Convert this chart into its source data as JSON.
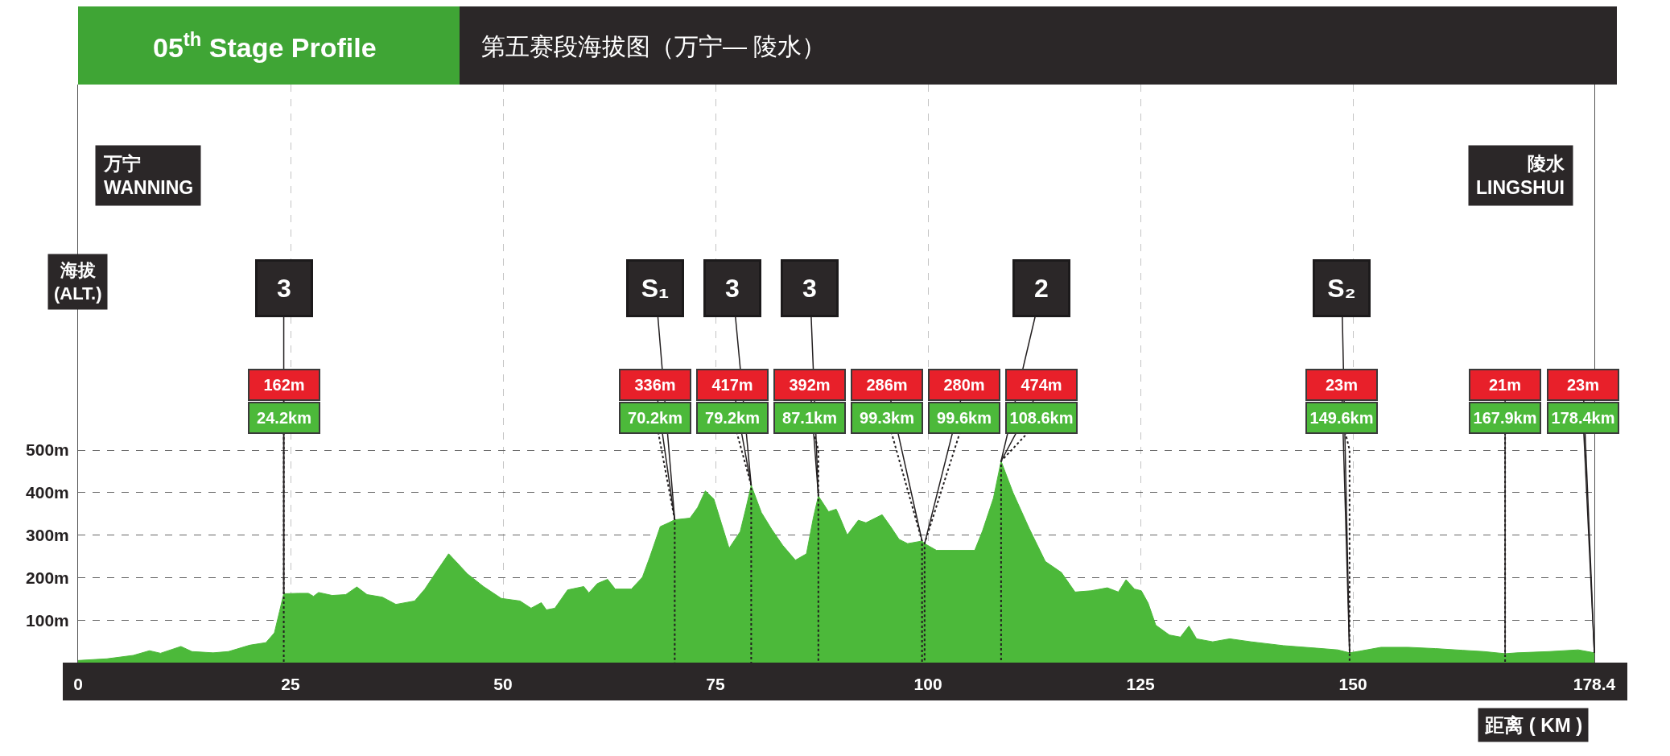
{
  "chart_data": {
    "type": "area",
    "title": "第五赛段海拔图（万宁— 陵水）",
    "subtitle": "05$^{th}$ Stage Profile",
    "xlabel": "距离 ( KM )",
    "ylabel": "海拔\n(ALT.)",
    "x": [
      0,
      3.4,
      6.5,
      8.4,
      9.7,
      12.1,
      13.4,
      15.9,
      17.7,
      18.7,
      20.2,
      22.1,
      23.1,
      23.7,
      24.2,
      25.9,
      27.1,
      27.7,
      28.3,
      29.9,
      31.5,
      32.8,
      34.0,
      35.8,
      37.4,
      39.6,
      40.8,
      42.1,
      43.6,
      44.5,
      45.8,
      47.7,
      49.8,
      52.0,
      53.3,
      54.5,
      55.1,
      56.1,
      57.6,
      59.5,
      60.1,
      61.1,
      62.3,
      63.2,
      65.1,
      66.4,
      67.3,
      68.5,
      69.5,
      70.2,
      72.0,
      72.9,
      73.8,
      74.8,
      75.7,
      76.6,
      77.9,
      78.6,
      79.2,
      80.4,
      81.6,
      82.9,
      84.4,
      85.7,
      86.5,
      87.1,
      88.3,
      89.2,
      89.5,
      90.5,
      91.8,
      92.7,
      94.6,
      95.6,
      96.6,
      97.6,
      99.3,
      99.6,
      101.0,
      103.6,
      105.5,
      106.4,
      107.7,
      108.6,
      110.0,
      111.9,
      113.8,
      115.7,
      117.3,
      119.2,
      121.1,
      122.4,
      123.3,
      124.3,
      125.1,
      125.9,
      126.8,
      128.4,
      129.7,
      130.7,
      131.6,
      133.5,
      135.5,
      138.0,
      141.8,
      145.7,
      148.2,
      149.6,
      150.8,
      153.3,
      156.5,
      159.7,
      162.9,
      165.4,
      167.9,
      169.3,
      173.1,
      176.5,
      178.4
    ],
    "series": [
      {
        "color": "#4cb93a",
        "values": [
          5,
          9,
          17,
          28,
          22,
          38,
          26,
          23,
          26,
          32,
          41,
          47,
          70,
          120,
          162,
          163,
          163,
          156,
          165,
          158,
          160,
          178,
          160,
          154,
          137,
          145,
          173,
          212,
          256,
          237,
          209,
          179,
          151,
          145,
          128,
          141,
          124,
          128,
          171,
          179,
          164,
          186,
          196,
          173,
          173,
          201,
          250,
          320,
          329,
          336,
          340,
          365,
          404,
          385,
          327,
          269,
          308,
          365,
          417,
          353,
          314,
          276,
          241,
          256,
          340,
          392,
          355,
          361,
          348,
          300,
          335,
          329,
          348,
          320,
          290,
          280,
          286,
          280,
          264,
          264,
          264,
          309,
          387,
          474,
          400,
          316,
          238,
          212,
          166,
          169,
          176,
          166,
          195,
          173,
          169,
          140,
          88,
          65,
          60,
          86,
          56,
          49,
          56,
          49,
          40,
          34,
          30,
          23,
          27,
          36,
          36,
          33,
          29,
          26,
          21,
          23,
          26,
          30,
          23
        ]
      }
    ],
    "xlim": [
      0,
      178.4
    ],
    "xticks": [
      0,
      25,
      50,
      75,
      100,
      125,
      150,
      178.4
    ],
    "ylim": [
      0,
      1360
    ],
    "yticks": [
      {
        "value": 100,
        "label": "100m"
      },
      {
        "value": 200,
        "label": "200m"
      },
      {
        "value": 300,
        "label": "300m"
      },
      {
        "value": 400,
        "label": "400m"
      },
      {
        "value": 500,
        "label": "500m"
      }
    ],
    "grid": true,
    "ref_lines": [
      {
        "axis": "x",
        "value": 24.2,
        "label": "24.2km",
        "line_style": "dotted"
      },
      {
        "axis": "x",
        "value": 70.2,
        "label": "70.2km",
        "line_style": "dotted"
      },
      {
        "axis": "x",
        "value": 79.2,
        "label": "79.2km",
        "line_style": "dotted"
      },
      {
        "axis": "x",
        "value": 87.1,
        "label": "87.1km",
        "line_style": "dotted"
      },
      {
        "axis": "x",
        "value": 99.3,
        "label": "99.3km",
        "line_style": "dotted"
      },
      {
        "axis": "x",
        "value": 99.6,
        "label": "99.6km",
        "line_style": "dotted"
      },
      {
        "axis": "x",
        "value": 108.6,
        "label": "108.6km",
        "line_style": "dotted"
      },
      {
        "axis": "x",
        "value": 149.6,
        "label": "149.6km",
        "line_style": "dotted"
      },
      {
        "axis": "x",
        "value": 167.9,
        "label": "167.9km",
        "line_style": "dotted"
      }
    ],
    "annotations": [
      "万宁\nWANNING",
      "陵水\nLINGSHUI",
      {
        "text": "3",
        "x": 24.2,
        "y": 162
      },
      {
        "text": "162m",
        "x": 24.2,
        "y": 162
      },
      {
        "text": "S₁",
        "x": 70.2,
        "y": 336
      },
      {
        "text": "336m",
        "x": 70.2,
        "y": 336
      },
      {
        "text": "3",
        "x": 79.2,
        "y": 417
      },
      {
        "text": "417m",
        "x": 79.2,
        "y": 417
      },
      {
        "text": "3",
        "x": 87.1,
        "y": 392
      },
      {
        "text": "392m",
        "x": 87.1,
        "y": 392
      },
      {
        "text": "286m",
        "x": 99.3,
        "y": 286
      },
      {
        "text": "280m",
        "x": 99.6,
        "y": 280
      },
      {
        "text": "2",
        "x": 108.6,
        "y": 474
      },
      {
        "text": "474m",
        "x": 108.6,
        "y": 474
      },
      {
        "text": "S₂",
        "x": 149.6,
        "y": 23
      },
      {
        "text": "23m",
        "x": 149.6,
        "y": 23
      },
      {
        "text": "21m",
        "x": 167.9,
        "y": 21
      },
      {
        "text": "23m",
        "x": 178.4,
        "y": 23
      },
      {
        "text": "178.4km",
        "x": 178.4,
        "y": 23
      }
    ]
  }
}
